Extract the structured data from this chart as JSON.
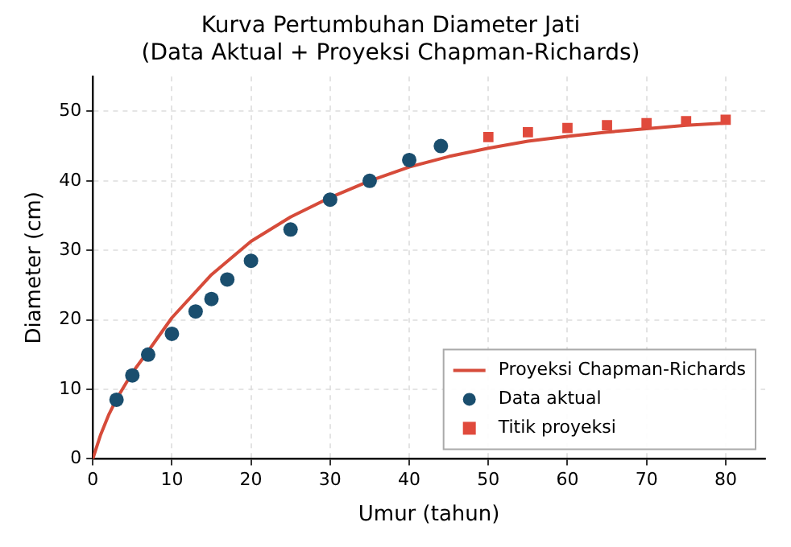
{
  "chart_data": {
    "type": "scatter",
    "title": "Kurva Pertumbuhan Diameter Jati",
    "subtitle": "(Data Aktual + Proyeksi Chapman-Richards)",
    "xlabel": "Umur (tahun)",
    "ylabel": "Diameter (cm)",
    "xlim": [
      0,
      85
    ],
    "ylim": [
      0,
      55
    ],
    "xticks": [
      0,
      10,
      20,
      30,
      40,
      50,
      60,
      70,
      80
    ],
    "yticks": [
      0,
      10,
      20,
      30,
      40,
      50
    ],
    "grid": true,
    "legend": "bottom right",
    "series": [
      {
        "name": "Proyeksi Chapman-Richards",
        "type": "line",
        "color": "#d64b3a",
        "marker": "none",
        "line_style": "solid",
        "x": [
          0,
          1,
          2,
          3,
          5,
          7,
          10,
          15,
          20,
          25,
          30,
          35,
          40,
          45,
          50,
          55,
          60,
          65,
          70,
          75,
          80
        ],
        "values": [
          0,
          3.5,
          6.3,
          8.6,
          12.4,
          15.5,
          20.3,
          26.5,
          31.3,
          34.8,
          37.6,
          40,
          42,
          43.5,
          44.7,
          45.7,
          46.4,
          47,
          47.5,
          48,
          48.3
        ]
      },
      {
        "name": "Data aktual",
        "type": "scatter",
        "color": "#1a4e6e",
        "marker": "circle",
        "x": [
          3,
          5,
          7,
          10,
          13,
          15,
          17,
          20,
          25,
          30,
          35,
          40,
          44
        ],
        "values": [
          8.5,
          12,
          15,
          18,
          21.2,
          23,
          25.8,
          28.5,
          33,
          37.3,
          40,
          43,
          45
        ]
      },
      {
        "name": "Titik proyeksi",
        "type": "scatter",
        "color": "#e04a3c",
        "marker": "square",
        "x": [
          50,
          55,
          60,
          65,
          70,
          75,
          80
        ],
        "values": [
          46.3,
          47,
          47.6,
          48,
          48.3,
          48.6,
          48.8
        ]
      }
    ]
  }
}
